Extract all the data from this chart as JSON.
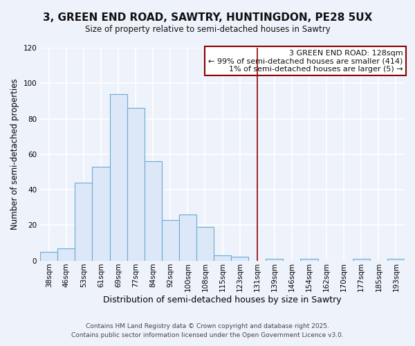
{
  "title": "3, GREEN END ROAD, SAWTRY, HUNTINGDON, PE28 5UX",
  "subtitle": "Size of property relative to semi-detached houses in Sawtry",
  "xlabel": "Distribution of semi-detached houses by size in Sawtry",
  "ylabel": "Number of semi-detached properties",
  "bin_labels": [
    "38sqm",
    "46sqm",
    "53sqm",
    "61sqm",
    "69sqm",
    "77sqm",
    "84sqm",
    "92sqm",
    "100sqm",
    "108sqm",
    "115sqm",
    "123sqm",
    "131sqm",
    "139sqm",
    "146sqm",
    "154sqm",
    "162sqm",
    "170sqm",
    "177sqm",
    "185sqm",
    "193sqm"
  ],
  "bar_values": [
    5,
    7,
    44,
    53,
    94,
    86,
    56,
    23,
    26,
    19,
    3,
    2,
    0,
    1,
    0,
    1,
    0,
    0,
    1,
    0,
    1
  ],
  "bar_color": "#dce8f8",
  "bar_edge_color": "#6aaad4",
  "vline_color": "#8b0000",
  "ylim": [
    0,
    120
  ],
  "yticks": [
    0,
    20,
    40,
    60,
    80,
    100,
    120
  ],
  "annotation_title": "3 GREEN END ROAD: 128sqm",
  "annotation_line1": "← 99% of semi-detached houses are smaller (414)",
  "annotation_line2": "1% of semi-detached houses are larger (5) →",
  "footer1": "Contains HM Land Registry data © Crown copyright and database right 2025.",
  "footer2": "Contains public sector information licensed under the Open Government Licence v3.0.",
  "background_color": "#eef2fb",
  "grid_color": "#ffffff",
  "title_fontsize": 11,
  "subtitle_fontsize": 8.5,
  "xlabel_fontsize": 9,
  "ylabel_fontsize": 8.5,
  "tick_fontsize": 7.5,
  "annotation_fontsize": 8,
  "footer_fontsize": 6.5
}
